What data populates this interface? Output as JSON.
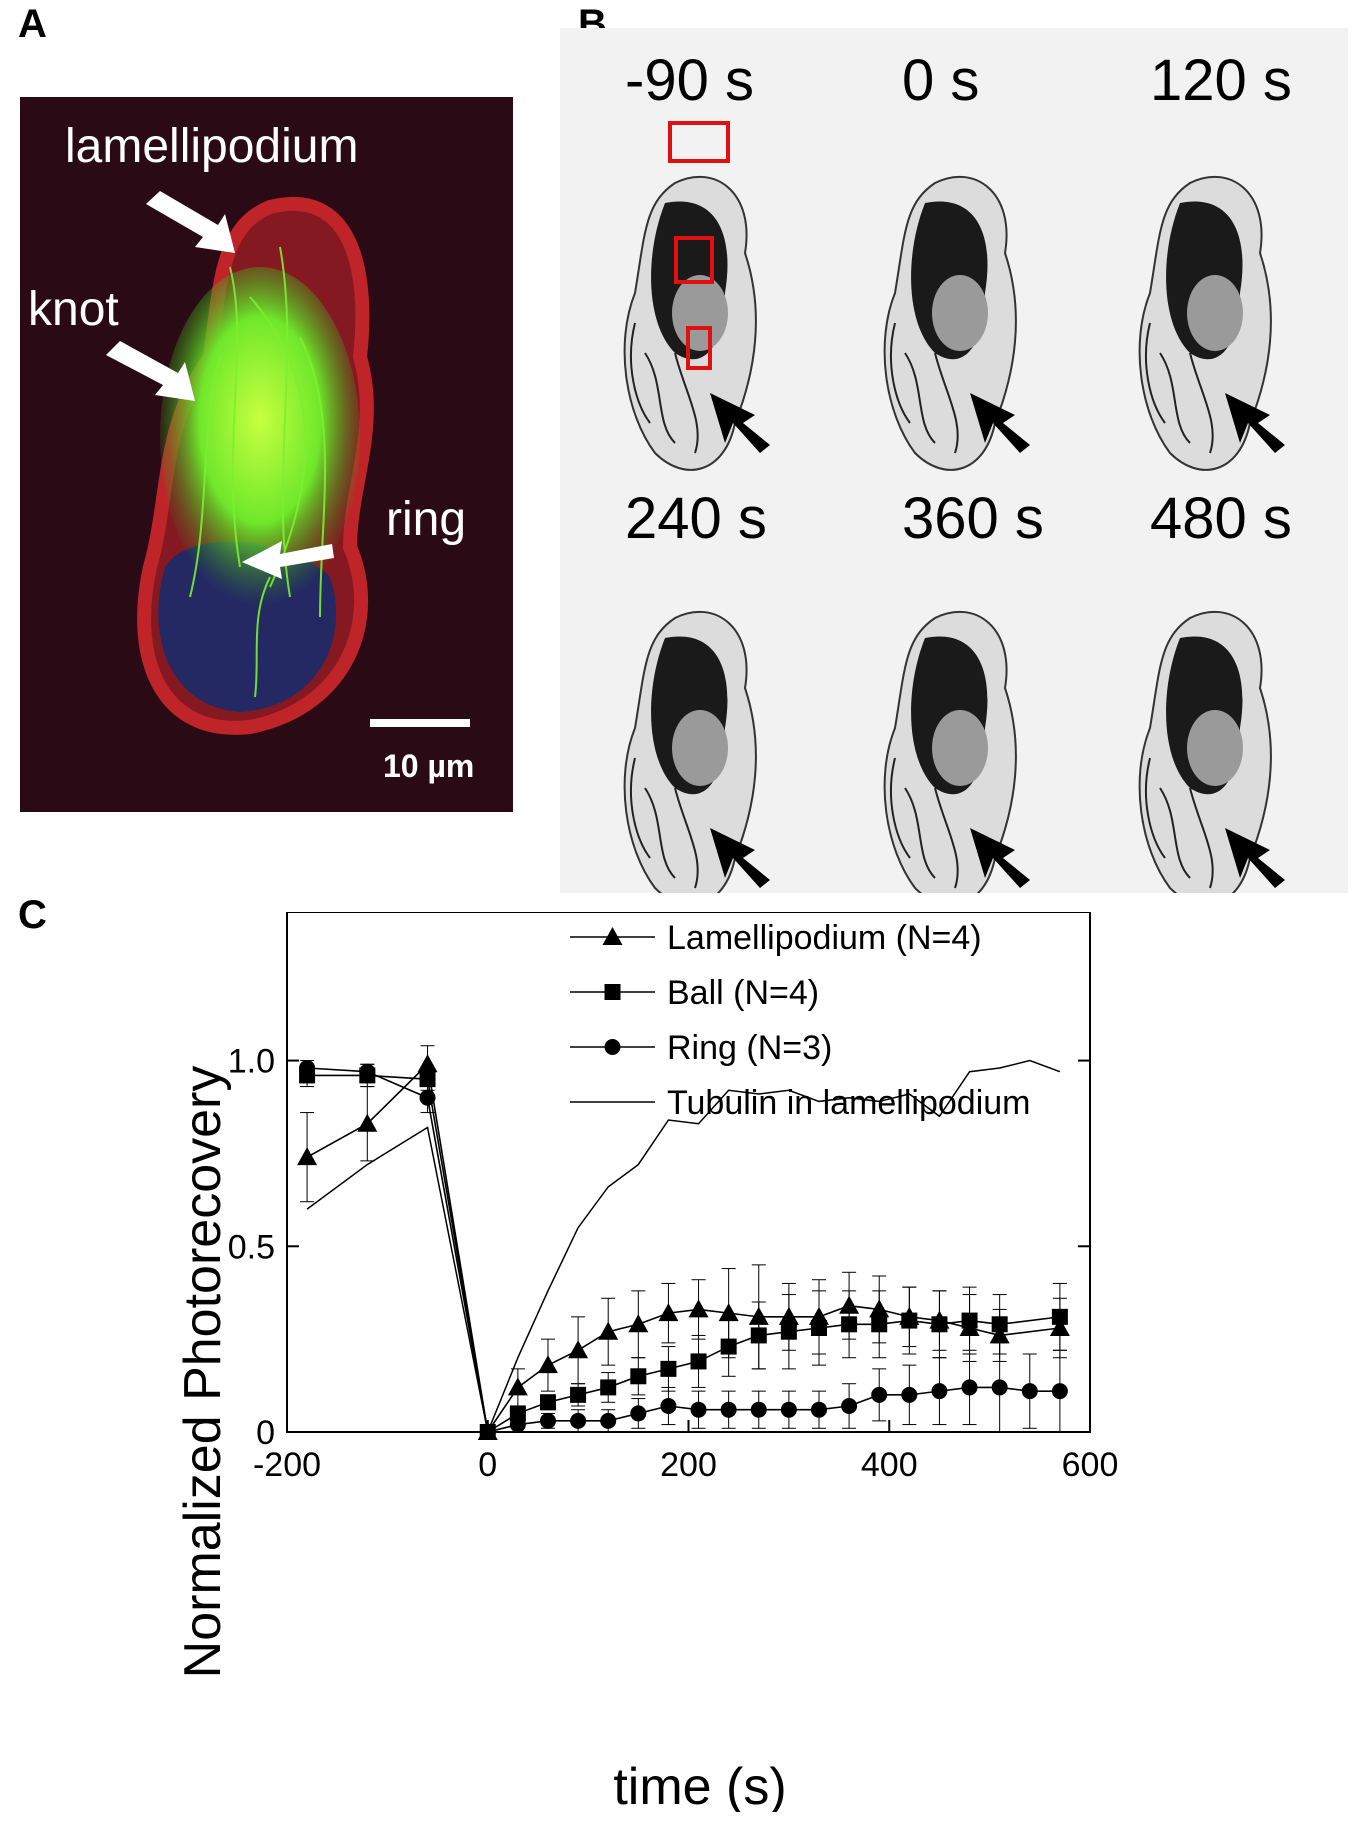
{
  "panels": {
    "a": {
      "letter": "A",
      "labels": {
        "lamellipodium": "lamellipodium",
        "knot": "knot",
        "ring": "ring"
      },
      "scale_bar": "10 µm"
    },
    "b": {
      "letter": "B",
      "frames": [
        "-90 s",
        "0 s",
        "120 s",
        "240 s",
        "360 s",
        "480 s"
      ]
    },
    "c": {
      "letter": "C"
    }
  },
  "colors": {
    "micrograph_background": "#2a0a14",
    "actin_red": "#c8262a",
    "tubulin_green": "#6fe82a",
    "nucleus_blue": "#1a2a6a",
    "roi_red": "#e01010",
    "timelapse_background": "#f2f2f2"
  },
  "chart_data": {
    "type": "line",
    "title": "",
    "xlabel": "time (s)",
    "ylabel": "Normalized Photorecovery",
    "xlim": [
      -200,
      600
    ],
    "ylim": [
      0,
      1.4
    ],
    "xticks": [
      -200,
      0,
      200,
      400,
      600
    ],
    "yticks": [
      0,
      0.5,
      1.0
    ],
    "ytick_labels": [
      "0",
      "0.5",
      "1.0"
    ],
    "grid": false,
    "legend_position": "top-right",
    "series": [
      {
        "name": "Lamellipodium (N=4)",
        "marker": "triangle",
        "x": [
          -180,
          -120,
          -60,
          0,
          30,
          60,
          90,
          120,
          150,
          180,
          210,
          240,
          270,
          300,
          330,
          360,
          390,
          420,
          450,
          480,
          510,
          570
        ],
        "y": [
          0.74,
          0.83,
          0.99,
          0.0,
          0.12,
          0.18,
          0.22,
          0.27,
          0.29,
          0.32,
          0.33,
          0.32,
          0.31,
          0.31,
          0.31,
          0.34,
          0.33,
          0.31,
          0.3,
          0.28,
          0.26,
          0.28
        ],
        "err": [
          0.12,
          0.1,
          0.05,
          0.0,
          0.05,
          0.07,
          0.09,
          0.09,
          0.09,
          0.08,
          0.08,
          0.12,
          0.14,
          0.09,
          0.1,
          0.09,
          0.09,
          0.08,
          0.08,
          0.09,
          0.07,
          0.08
        ]
      },
      {
        "name": "Ball (N=4)",
        "marker": "square",
        "x": [
          -180,
          -120,
          -60,
          0,
          30,
          60,
          90,
          120,
          150,
          180,
          210,
          240,
          270,
          300,
          330,
          360,
          390,
          420,
          450,
          480,
          510,
          570
        ],
        "y": [
          0.96,
          0.96,
          0.95,
          0.0,
          0.05,
          0.08,
          0.1,
          0.12,
          0.15,
          0.17,
          0.19,
          0.23,
          0.26,
          0.27,
          0.28,
          0.29,
          0.29,
          0.3,
          0.29,
          0.3,
          0.29,
          0.31
        ],
        "err": [
          0.03,
          0.03,
          0.03,
          0.0,
          0.02,
          0.02,
          0.03,
          0.04,
          0.05,
          0.06,
          0.07,
          0.08,
          0.09,
          0.1,
          0.1,
          0.09,
          0.09,
          0.09,
          0.09,
          0.09,
          0.08,
          0.09
        ]
      },
      {
        "name": "Ring (N=3)",
        "marker": "circle",
        "x": [
          -180,
          -120,
          -60,
          0,
          30,
          60,
          90,
          120,
          150,
          180,
          210,
          240,
          270,
          300,
          330,
          360,
          390,
          420,
          450,
          480,
          510,
          540,
          570
        ],
        "y": [
          0.98,
          0.97,
          0.9,
          0.0,
          0.02,
          0.03,
          0.03,
          0.03,
          0.05,
          0.07,
          0.06,
          0.06,
          0.06,
          0.06,
          0.06,
          0.07,
          0.1,
          0.1,
          0.11,
          0.12,
          0.12,
          0.11,
          0.11
        ],
        "err": [
          0.02,
          0.02,
          0.04,
          0.0,
          0.02,
          0.02,
          0.03,
          0.03,
          0.04,
          0.05,
          0.05,
          0.05,
          0.05,
          0.05,
          0.05,
          0.06,
          0.07,
          0.08,
          0.09,
          0.1,
          0.12,
          0.1,
          0.11
        ]
      },
      {
        "name": "Tubulin in lamellipodium",
        "marker": "none",
        "x": [
          -180,
          -120,
          -60,
          0,
          30,
          60,
          90,
          120,
          150,
          180,
          210,
          240,
          270,
          300,
          330,
          360,
          390,
          420,
          450,
          480,
          510,
          540,
          570
        ],
        "y": [
          0.6,
          0.72,
          0.82,
          0.0,
          0.2,
          0.38,
          0.55,
          0.66,
          0.72,
          0.84,
          0.83,
          0.92,
          0.91,
          0.92,
          0.89,
          0.9,
          0.89,
          0.91,
          0.85,
          0.97,
          0.98,
          1.0,
          0.97
        ],
        "err": []
      }
    ]
  }
}
